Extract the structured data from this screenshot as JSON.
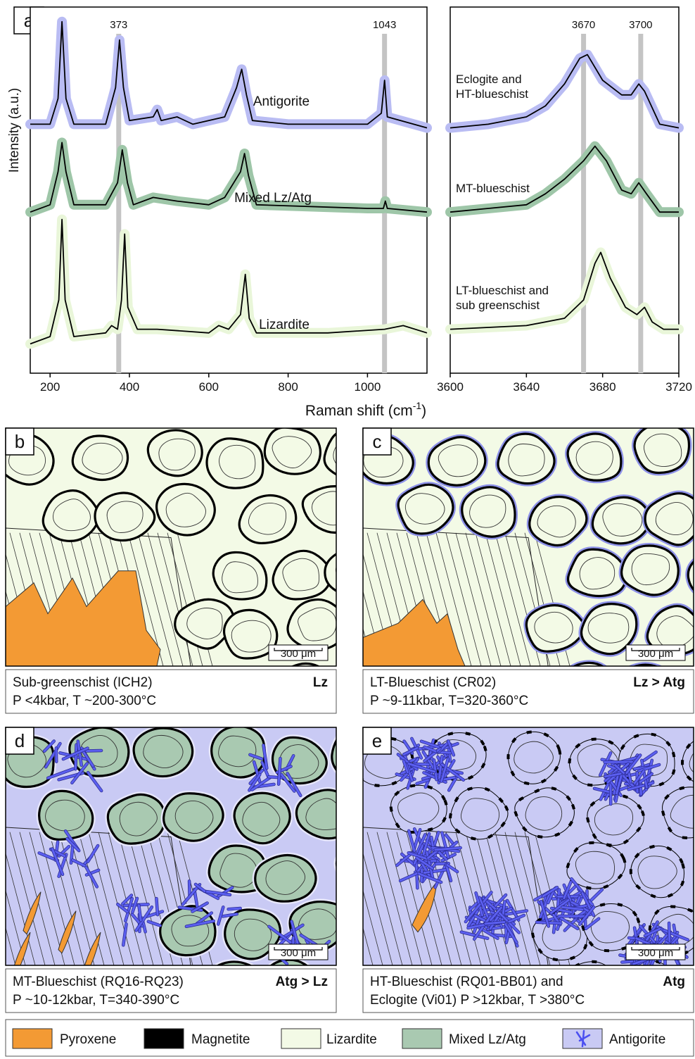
{
  "figure": {
    "letter": "a",
    "ylabel": "Intensity (a.u.)",
    "xlabel": [
      "Raman shift (cm",
      "-1",
      ")"
    ]
  },
  "chart_data": [
    {
      "type": "line",
      "xlim": [
        150,
        1150
      ],
      "ylim": [
        0,
        100
      ],
      "xticks": [
        200,
        400,
        600,
        800,
        1000
      ],
      "markers": [
        373,
        1043
      ],
      "series": [
        {
          "label": [
            "Antigorite"
          ],
          "color": "#000000",
          "halo": "#b9bcf3",
          "x": [
            150,
            200,
            220,
            230,
            240,
            260,
            340,
            365,
            375,
            385,
            400,
            460,
            470,
            480,
            520,
            560,
            640,
            670,
            683,
            695,
            710,
            800,
            1000,
            1035,
            1043,
            1050,
            1150
          ],
          "values": [
            68,
            68,
            75,
            96,
            75,
            68,
            68,
            78,
            91,
            78,
            69,
            70,
            72,
            69,
            70,
            68,
            70,
            78,
            83,
            76,
            69,
            68,
            68,
            71,
            80,
            70,
            67
          ]
        },
        {
          "label": [
            "Mixed Lz/Atg"
          ],
          "color": "#000000",
          "halo": "#9ec6a8",
          "x": [
            150,
            200,
            220,
            230,
            240,
            260,
            340,
            370,
            382,
            395,
            410,
            460,
            520,
            600,
            640,
            680,
            690,
            700,
            720,
            1000,
            1040,
            1045,
            1050,
            1150
          ],
          "values": [
            44,
            46,
            55,
            63,
            55,
            46,
            46,
            52,
            61,
            52,
            46,
            48,
            47,
            46,
            48,
            55,
            60,
            54,
            46,
            45,
            45,
            47,
            45,
            44
          ]
        },
        {
          "label": [
            "Lizardite"
          ],
          "color": "#000000",
          "halo": "#e9f6d9",
          "x": [
            150,
            200,
            222,
            230,
            238,
            260,
            340,
            355,
            370,
            380,
            388,
            396,
            420,
            470,
            600,
            625,
            650,
            680,
            692,
            702,
            720,
            900,
            1043,
            1090,
            1150
          ],
          "values": [
            8,
            10,
            20,
            42,
            20,
            10,
            11,
            13,
            12,
            20,
            38,
            18,
            12,
            12,
            11,
            13,
            12,
            16,
            27,
            15,
            11,
            11,
            12,
            13,
            11
          ]
        }
      ]
    },
    {
      "type": "line",
      "xlim": [
        3600,
        3720
      ],
      "ylim": [
        0,
        100
      ],
      "xticks": [
        3600,
        3640,
        3680,
        3720
      ],
      "markers": [
        3670,
        3700
      ],
      "series": [
        {
          "label": [
            "Eclogite and",
            "HT-blueschist"
          ],
          "color": "#000000",
          "halo": "#b9bcf3",
          "x": [
            3600,
            3620,
            3640,
            3650,
            3660,
            3668,
            3672,
            3680,
            3690,
            3695,
            3699,
            3702,
            3710,
            3720
          ],
          "values": [
            67,
            68,
            70,
            73,
            79,
            86,
            87,
            80,
            76,
            76,
            79,
            77,
            68,
            67
          ]
        },
        {
          "label": [
            "MT-blueschist"
          ],
          "color": "#000000",
          "halo": "#9ec6a8",
          "x": [
            3600,
            3620,
            3640,
            3650,
            3660,
            3670,
            3676,
            3682,
            3690,
            3695,
            3699,
            3703,
            3710,
            3720
          ],
          "values": [
            44,
            45,
            46,
            49,
            53,
            58,
            62,
            58,
            50,
            49,
            52,
            49,
            44,
            44
          ]
        },
        {
          "label": [
            "LT-blueschist and",
            "sub greenschist"
          ],
          "color": "#000000",
          "halo": "#e9f6d9",
          "x": [
            3600,
            3640,
            3660,
            3670,
            3676,
            3679,
            3684,
            3692,
            3698,
            3702,
            3706,
            3712,
            3720
          ],
          "values": [
            12,
            13,
            15,
            20,
            30,
            33,
            26,
            18,
            16,
            18,
            14,
            12,
            12
          ]
        }
      ]
    }
  ],
  "panels": [
    {
      "letter": "b",
      "caption": [
        "Sub-greenschist (ICH2)",
        "P <4kbar, T ~200-300°C"
      ],
      "phase": "Lz",
      "scale": "300 μm"
    },
    {
      "letter": "c",
      "caption": [
        "LT-Blueschist (CR02)",
        "P ~9-11kbar, T=320-360°C"
      ],
      "phase": "Lz > Atg",
      "scale": "300 μm"
    },
    {
      "letter": "d",
      "caption": [
        "MT-Blueschist (RQ16-RQ23)",
        "P ~10-12kbar, T=340-390°C"
      ],
      "phase": "Atg > Lz",
      "scale": "300 μm"
    },
    {
      "letter": "e",
      "caption": [
        "HT-Blueschist (RQ01-BB01) and",
        "Eclogite (Vi01)  P >12kbar, T >380°C"
      ],
      "phase": "Atg",
      "scale": "300 μm"
    }
  ],
  "legend": [
    "Pyroxene",
    "Magnetite",
    "Lizardite",
    "Mixed Lz/Atg",
    "Antigorite"
  ]
}
